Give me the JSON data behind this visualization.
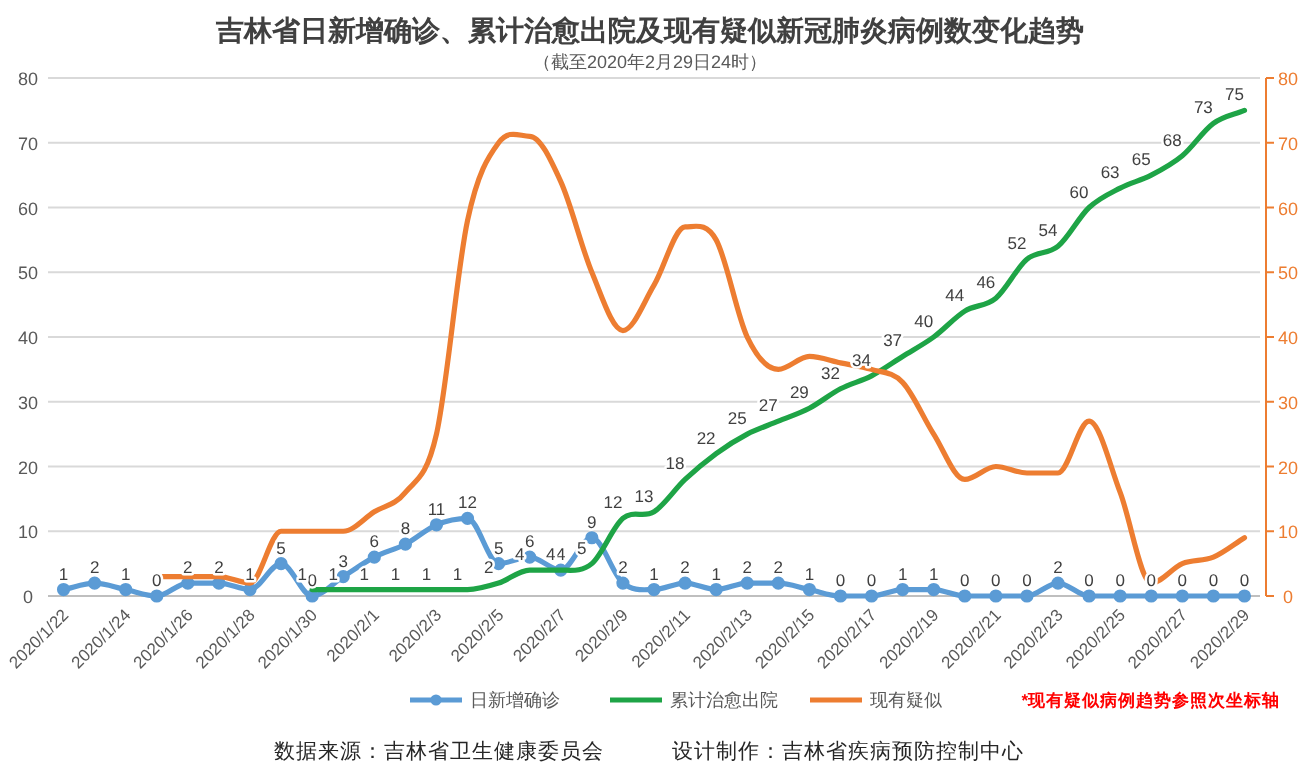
{
  "chart_data": {
    "type": "line",
    "title": "吉林省日新增确诊、累计治愈出院及现有疑似新冠肺炎病例数变化趋势",
    "subtitle": "（截至2020年2月29日24时）",
    "categories": [
      "2020/1/22",
      null,
      "2020/1/24",
      null,
      "2020/1/26",
      null,
      "2020/1/28",
      null,
      "2020/1/30",
      null,
      "2020/2/1",
      null,
      "2020/2/3",
      null,
      "2020/2/5",
      null,
      "2020/2/7",
      null,
      "2020/2/9",
      null,
      "2020/2/11",
      null,
      "2020/2/13",
      null,
      "2020/2/15",
      null,
      "2020/2/17",
      null,
      "2020/2/19",
      null,
      "2020/2/21",
      null,
      "2020/2/23",
      null,
      "2020/2/25",
      null,
      "2020/2/27",
      null,
      "2020/2/29"
    ],
    "series": [
      {
        "name": "日新增确诊",
        "color": "#5b9bd5",
        "marker": "circle",
        "values": [
          1,
          2,
          1,
          0,
          2,
          2,
          1,
          5,
          0,
          3,
          6,
          8,
          11,
          12,
          5,
          6,
          4,
          9,
          2,
          1,
          2,
          1,
          2,
          2,
          1,
          0,
          0,
          1,
          1,
          0,
          0,
          0,
          2,
          0,
          0,
          0,
          0,
          0,
          0
        ],
        "value_labels": [
          "1",
          "2",
          "1",
          "0",
          "2",
          "2",
          "1",
          "5",
          "0",
          "3",
          "6",
          "8",
          "11",
          "12",
          "5",
          "6",
          "4",
          "9",
          "2",
          "1",
          "2",
          "1",
          "2",
          "2",
          "1",
          "0",
          "0",
          "1",
          "1",
          "0",
          "0",
          "0",
          "2",
          "0",
          "0",
          "0",
          "0",
          "0",
          "0"
        ]
      },
      {
        "name": "累计治愈出院",
        "color": "#1ea446",
        "values": [
          null,
          null,
          null,
          null,
          null,
          null,
          null,
          null,
          1,
          1,
          1,
          1,
          1,
          1,
          2,
          4,
          4,
          5,
          12,
          13,
          18,
          22,
          25,
          27,
          29,
          32,
          34,
          37,
          40,
          44,
          46,
          52,
          54,
          60,
          63,
          65,
          68,
          73,
          75
        ],
        "value_labels": [
          null,
          null,
          null,
          null,
          null,
          null,
          null,
          null,
          "1",
          "1",
          "1",
          "1",
          "1",
          "1",
          "2",
          "4",
          "4",
          "5",
          "12",
          "13",
          "18",
          "22",
          "25",
          "27",
          "29",
          "32",
          "34",
          "37",
          "40",
          "44",
          "46",
          "52",
          "54",
          "60",
          "63",
          "65",
          "68",
          "73",
          "75"
        ]
      },
      {
        "name": "现有疑似",
        "color": "#ed7d31",
        "axis": "y2",
        "values": [
          null,
          null,
          null,
          3,
          3,
          3,
          2,
          10,
          10,
          10,
          13,
          16,
          25,
          58,
          70,
          71,
          64,
          50,
          41,
          48,
          57,
          55,
          40,
          35,
          37,
          36,
          35,
          33,
          25,
          18,
          20,
          19,
          19,
          27,
          16,
          2,
          5,
          6,
          9
        ]
      }
    ],
    "ylim": [
      0,
      80
    ],
    "yticks": [
      0,
      10,
      20,
      30,
      40,
      50,
      60,
      70,
      80
    ],
    "y2lim": [
      0,
      80
    ],
    "y2ticks": [
      0,
      10,
      20,
      30,
      40,
      50,
      60,
      70,
      80
    ],
    "grid": "y",
    "legend": "bottom",
    "annotations": [
      "*现有疑似病例趋势参照次坐标轴",
      "数据来源：吉林省卫生健康委员会",
      "设计制作：吉林省疾病预防控制中心"
    ]
  }
}
